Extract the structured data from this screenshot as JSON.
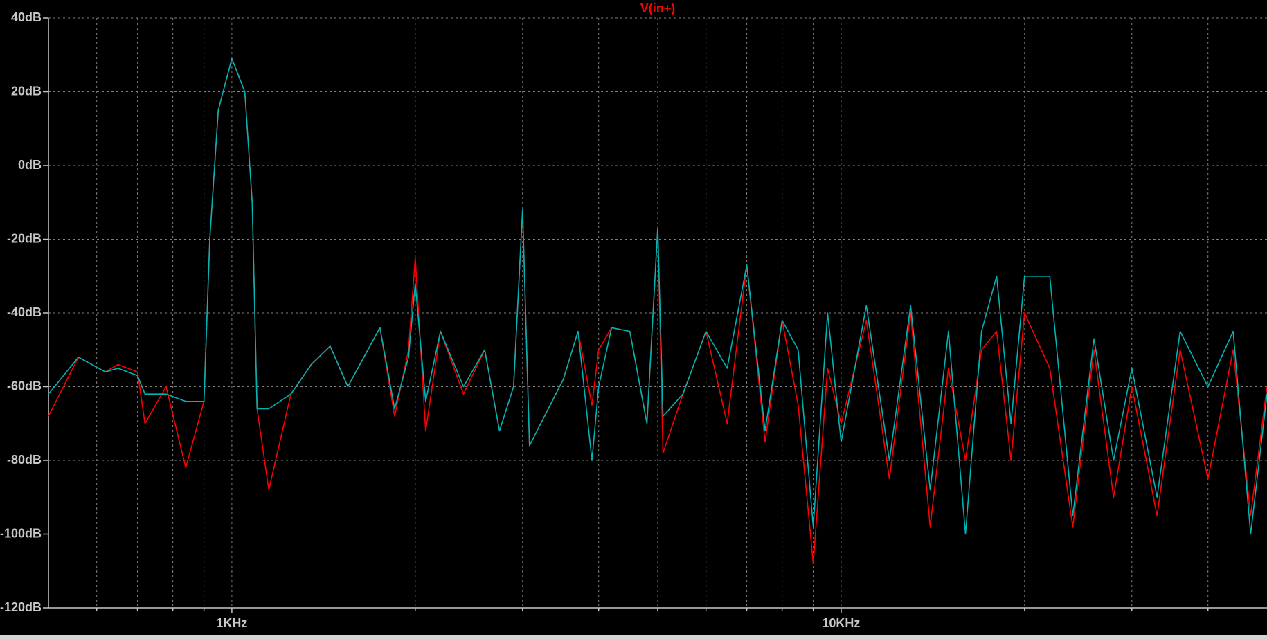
{
  "chart_data": {
    "type": "line",
    "xscale": "log",
    "grid": true,
    "xlim": [
      500,
      50000
    ],
    "ylim": [
      -120,
      40
    ],
    "xticks": [
      {
        "value": 1000,
        "label": "1KHz"
      },
      {
        "value": 10000,
        "label": "10KHz"
      }
    ],
    "xminor_ticks": [
      600,
      700,
      800,
      900,
      2000,
      3000,
      4000,
      5000,
      6000,
      7000,
      8000,
      9000,
      20000,
      30000,
      40000
    ],
    "yticks": [
      {
        "value": 40,
        "label": "40dB"
      },
      {
        "value": 20,
        "label": "20dB"
      },
      {
        "value": 0,
        "label": "0dB"
      },
      {
        "value": -20,
        "label": "-20dB"
      },
      {
        "value": -40,
        "label": "-40dB"
      },
      {
        "value": -60,
        "label": "-60dB"
      },
      {
        "value": -80,
        "label": "-80dB"
      },
      {
        "value": -100,
        "label": "-100dB"
      },
      {
        "value": -120,
        "label": "-120dB"
      }
    ],
    "x": [
      500,
      560,
      620,
      650,
      700,
      720,
      780,
      840,
      900,
      920,
      950,
      1000,
      1050,
      1080,
      1100,
      1150,
      1250,
      1350,
      1450,
      1550,
      1750,
      1850,
      1950,
      2000,
      2080,
      2200,
      2400,
      2600,
      2750,
      2900,
      3000,
      3080,
      3500,
      3700,
      3900,
      4000,
      4200,
      4500,
      4800,
      5000,
      5100,
      5500,
      6000,
      6500,
      7000,
      7500,
      8000,
      8500,
      9000,
      9500,
      10000,
      11000,
      12000,
      13000,
      14000,
      15000,
      16000,
      17000,
      18000,
      19000,
      20000,
      22000,
      24000,
      26000,
      28000,
      30000,
      33000,
      36000,
      40000,
      44000,
      47000,
      50000
    ],
    "series": [
      {
        "name": "V(in+)",
        "color": "#ff0000",
        "values": [
          -68,
          -52,
          -56,
          -54,
          -56,
          -70,
          -60,
          -82,
          -64,
          -20,
          15,
          29,
          20,
          -10,
          -66,
          -88,
          -62,
          -54,
          -49,
          -60,
          -44,
          -68,
          -50,
          -25,
          -72,
          -45,
          -62,
          -50,
          -72,
          -60,
          -12,
          -76,
          -58,
          -45,
          -65,
          -50,
          -44,
          -45,
          -70,
          -17,
          -78,
          -62,
          -45,
          -70,
          -27,
          -75,
          -42,
          -65,
          -108,
          -55,
          -70,
          -42,
          -85,
          -40,
          -98,
          -55,
          -80,
          -50,
          -45,
          -80,
          -40,
          -55,
          -98,
          -50,
          -90,
          -60,
          -95,
          -50,
          -85,
          -50,
          -95,
          -60
        ]
      },
      {
        "color": "#00b4b4",
        "values": [
          -62,
          -52,
          -56,
          -55,
          -57,
          -62,
          -62,
          -64,
          -64,
          -20,
          15,
          29,
          20,
          -10,
          -66,
          -66,
          -62,
          -54,
          -49,
          -60,
          -44,
          -66,
          -52,
          -32,
          -64,
          -45,
          -60,
          -50,
          -72,
          -60,
          -12,
          -76,
          -58,
          -45,
          -80,
          -60,
          -44,
          -45,
          -70,
          -17,
          -68,
          -62,
          -45,
          -55,
          -27,
          -72,
          -42,
          -50,
          -98,
          -40,
          -75,
          -38,
          -80,
          -38,
          -88,
          -45,
          -100,
          -45,
          -30,
          -70,
          -30,
          -30,
          -95,
          -47,
          -80,
          -55,
          -90,
          -45,
          -60,
          -45,
          -100,
          -62
        ]
      }
    ]
  }
}
